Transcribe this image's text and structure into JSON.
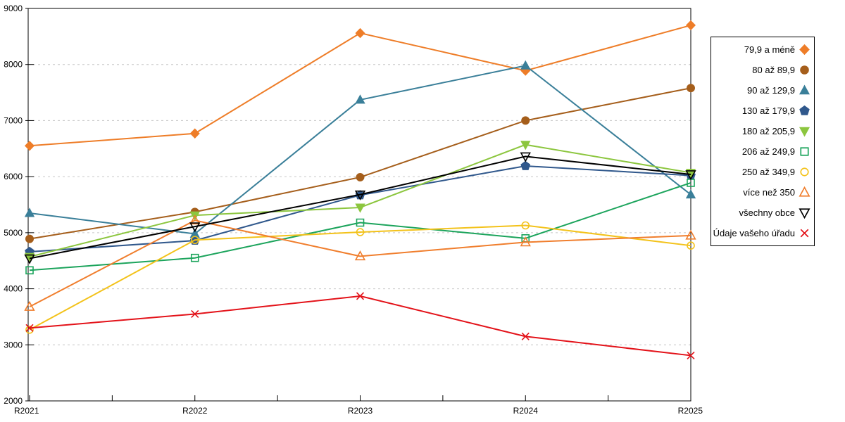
{
  "figure": {
    "background": "#ffffff",
    "plot_border_color": "#000000",
    "grid_color": "#c6c6c6"
  },
  "chart_data": {
    "type": "line",
    "title": "",
    "xlabel": "",
    "ylabel": "",
    "grid": "horizontal-dashed",
    "legend_position": "right-outside",
    "x_categories": [
      "R2021",
      "R2022",
      "R2023",
      "R2024",
      "R2025"
    ],
    "y_axis": {
      "min": 2000,
      "max": 9000,
      "step": 1000,
      "tick_labels": [
        "2000",
        "3000",
        "4000",
        "5000",
        "6000",
        "7000",
        "8000",
        "9000"
      ]
    },
    "series": [
      {
        "name": "79,9 a méně",
        "color": "#EE7D28",
        "marker": "diamond",
        "fill": "filled",
        "values": [
          6550,
          6770,
          8560,
          7890,
          8700
        ]
      },
      {
        "name": "80 až 89,9",
        "color": "#A55E1B",
        "marker": "circle",
        "fill": "filled",
        "values": [
          4890,
          5370,
          5990,
          7000,
          7580
        ]
      },
      {
        "name": "90 až 129,9",
        "color": "#3A7F99",
        "marker": "triangle-up",
        "fill": "filled",
        "values": [
          5350,
          4980,
          7370,
          7980,
          5680
        ]
      },
      {
        "name": "130 až 179,9",
        "color": "#30588C",
        "marker": "pentagon",
        "fill": "filled",
        "values": [
          4660,
          4860,
          5670,
          6190,
          6020
        ]
      },
      {
        "name": "180 až 205,9",
        "color": "#8CC63E",
        "marker": "triangle-down",
        "fill": "filled",
        "values": [
          4570,
          5310,
          5450,
          6570,
          6070
        ]
      },
      {
        "name": "206 až 249,9",
        "color": "#1CA45C",
        "marker": "square",
        "fill": "open",
        "values": [
          4330,
          4550,
          5180,
          4900,
          5890
        ]
      },
      {
        "name": "250 až 349,9",
        "color": "#F3C21A",
        "marker": "circle",
        "fill": "open",
        "values": [
          3270,
          4870,
          5010,
          5130,
          4770
        ]
      },
      {
        "name": "více než 350",
        "color": "#F07E2D",
        "marker": "triangle-up",
        "fill": "open",
        "values": [
          3680,
          5220,
          4580,
          4830,
          4950
        ]
      },
      {
        "name": "všechny obce",
        "color": "#000000",
        "marker": "triangle-down",
        "fill": "open",
        "values": [
          4540,
          5110,
          5680,
          6360,
          6040
        ]
      },
      {
        "name": "Údaje vašeho úřadu",
        "color": "#E31219",
        "marker": "x",
        "fill": "open",
        "values": [
          3300,
          3550,
          3870,
          3150,
          2810
        ]
      }
    ]
  }
}
